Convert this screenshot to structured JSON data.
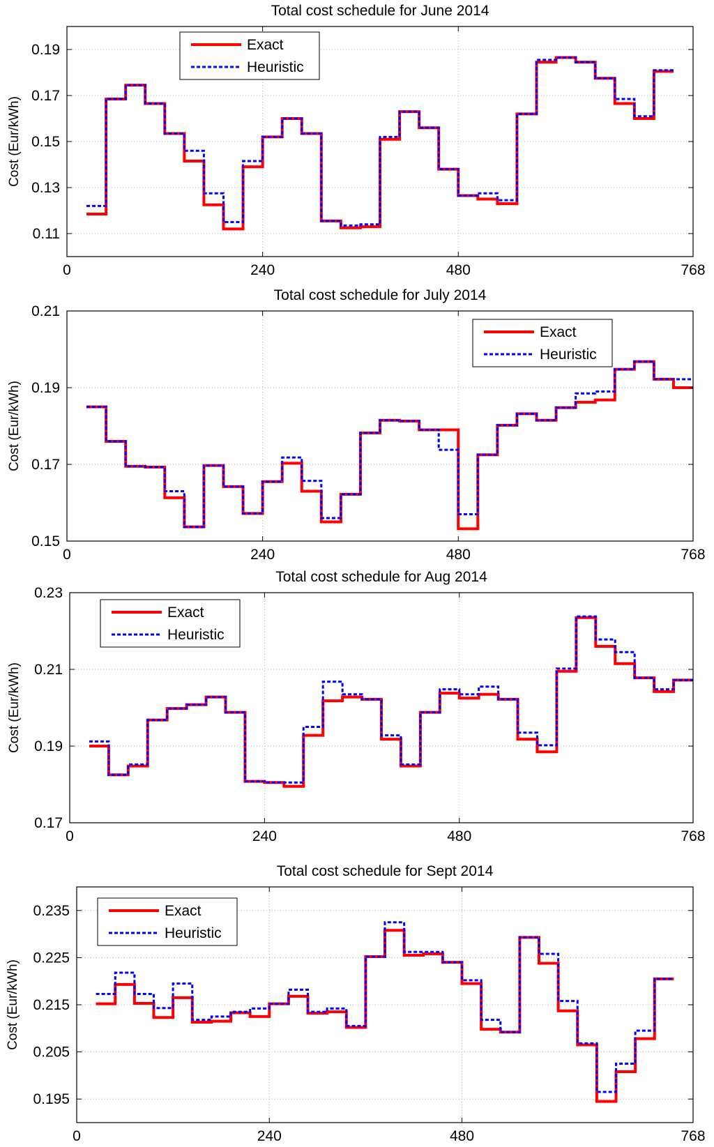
{
  "colors": {
    "exact": "#ff0000",
    "heuristic": "#0000ff",
    "grid": "#b0b0b0",
    "axis": "#000000"
  },
  "chart_data": [
    {
      "type": "line",
      "title": "Total cost schedule for June 2014",
      "xlabel": "",
      "ylabel": "Cost (Eur/kWh)",
      "xlim": [
        0,
        768
      ],
      "ylim": [
        0.1,
        0.2
      ],
      "xticks": [
        0,
        240,
        480,
        768
      ],
      "yticks": [
        0.11,
        0.13,
        0.15,
        0.17,
        0.19
      ],
      "ytick_labels": [
        "0.11",
        "0.13",
        "0.15",
        "0.17",
        "0.19"
      ],
      "legend_position": "top-left",
      "grid": true,
      "series": [
        {
          "name": "Exact",
          "style": "solid",
          "x": [
            24,
            48,
            72,
            96,
            120,
            144,
            168,
            192,
            216,
            240,
            264,
            288,
            312,
            336,
            360,
            384,
            408,
            432,
            456,
            480,
            504,
            528,
            552,
            576,
            600,
            624,
            648,
            672,
            696,
            720,
            744
          ],
          "y": [
            0.1185,
            0.1685,
            0.1745,
            0.1665,
            0.1535,
            0.1415,
            0.1225,
            0.112,
            0.139,
            0.152,
            0.16,
            0.1535,
            0.1155,
            0.1125,
            0.113,
            0.151,
            0.163,
            0.156,
            0.138,
            0.1265,
            0.125,
            0.123,
            0.162,
            0.1845,
            0.1865,
            0.1845,
            0.1775,
            0.1665,
            0.16,
            0.1805,
            0.1805
          ]
        },
        {
          "name": "Heuristic",
          "style": "dashed",
          "x": [
            24,
            48,
            72,
            96,
            120,
            144,
            168,
            192,
            216,
            240,
            264,
            288,
            312,
            336,
            360,
            384,
            408,
            432,
            456,
            480,
            504,
            528,
            552,
            576,
            600,
            624,
            648,
            672,
            696,
            720,
            744
          ],
          "y": [
            0.122,
            0.1685,
            0.1745,
            0.1665,
            0.1535,
            0.146,
            0.1275,
            0.115,
            0.1415,
            0.152,
            0.16,
            0.1535,
            0.1155,
            0.1135,
            0.114,
            0.152,
            0.163,
            0.156,
            0.138,
            0.1265,
            0.1275,
            0.1245,
            0.162,
            0.1855,
            0.1865,
            0.1845,
            0.1775,
            0.1685,
            0.161,
            0.181,
            0.181
          ]
        }
      ]
    },
    {
      "type": "line",
      "title": "Total cost schedule for July 2014",
      "xlabel": "",
      "ylabel": "Cost (Eur/kWh)",
      "xlim": [
        0,
        768
      ],
      "ylim": [
        0.15,
        0.21
      ],
      "xticks": [
        0,
        240,
        480,
        768
      ],
      "yticks": [
        0.15,
        0.17,
        0.19,
        0.21
      ],
      "ytick_labels": [
        "0.15",
        "0.17",
        "0.19",
        "0.21"
      ],
      "legend_position": "top-right",
      "grid": true,
      "series": [
        {
          "name": "Exact",
          "style": "solid",
          "x": [
            24,
            48,
            72,
            96,
            120,
            144,
            168,
            192,
            216,
            240,
            264,
            288,
            312,
            336,
            360,
            384,
            408,
            432,
            456,
            480,
            504,
            528,
            552,
            576,
            600,
            624,
            648,
            672,
            696,
            720,
            744,
            768
          ],
          "y": [
            0.185,
            0.176,
            0.1695,
            0.1693,
            0.1613,
            0.1537,
            0.1697,
            0.1642,
            0.1572,
            0.1655,
            0.1703,
            0.163,
            0.155,
            0.1622,
            0.1782,
            0.1815,
            0.1813,
            0.179,
            0.179,
            0.1532,
            0.1725,
            0.1802,
            0.1832,
            0.1815,
            0.1848,
            0.1862,
            0.1868,
            0.1948,
            0.1968,
            0.1922,
            0.19,
            0.19
          ]
        },
        {
          "name": "Heuristic",
          "style": "dashed",
          "x": [
            24,
            48,
            72,
            96,
            120,
            144,
            168,
            192,
            216,
            240,
            264,
            288,
            312,
            336,
            360,
            384,
            408,
            432,
            456,
            480,
            504,
            528,
            552,
            576,
            600,
            624,
            648,
            672,
            696,
            720,
            744,
            768
          ],
          "y": [
            0.185,
            0.176,
            0.1695,
            0.1693,
            0.163,
            0.1537,
            0.1697,
            0.1642,
            0.1572,
            0.1655,
            0.1718,
            0.1657,
            0.156,
            0.1622,
            0.1782,
            0.1815,
            0.1813,
            0.179,
            0.1738,
            0.157,
            0.1725,
            0.1802,
            0.1832,
            0.1815,
            0.1848,
            0.1885,
            0.189,
            0.1948,
            0.1968,
            0.1922,
            0.1922,
            0.1922
          ]
        }
      ]
    },
    {
      "type": "line",
      "title": "Total cost schedule for Aug 2014",
      "xlabel": "",
      "ylabel": "Cost (Eur/kWh)",
      "xlim": [
        0,
        768
      ],
      "ylim": [
        0.17,
        0.23
      ],
      "xticks": [
        0,
        240,
        480,
        768
      ],
      "yticks": [
        0.17,
        0.19,
        0.21,
        0.23
      ],
      "ytick_labels": [
        "0.17",
        "0.19",
        "0.21",
        "0.23"
      ],
      "legend_position": "top-left",
      "grid": true,
      "series": [
        {
          "name": "Exact",
          "style": "solid",
          "x": [
            24,
            48,
            72,
            96,
            120,
            144,
            168,
            192,
            216,
            240,
            264,
            288,
            312,
            336,
            360,
            384,
            408,
            432,
            456,
            480,
            504,
            528,
            552,
            576,
            600,
            624,
            648,
            672,
            696,
            720,
            744,
            768
          ],
          "y": [
            0.19,
            0.1825,
            0.1848,
            0.1968,
            0.1998,
            0.2008,
            0.2028,
            0.1988,
            0.1808,
            0.1805,
            0.1795,
            0.1928,
            0.2018,
            0.2028,
            0.2022,
            0.1918,
            0.1848,
            0.1988,
            0.2038,
            0.2025,
            0.2035,
            0.2022,
            0.1918,
            0.1885,
            0.2095,
            0.2235,
            0.216,
            0.2115,
            0.2078,
            0.2042,
            0.2072,
            0.2072
          ]
        },
        {
          "name": "Heuristic",
          "style": "dashed",
          "x": [
            24,
            48,
            72,
            96,
            120,
            144,
            168,
            192,
            216,
            240,
            264,
            288,
            312,
            336,
            360,
            384,
            408,
            432,
            456,
            480,
            504,
            528,
            552,
            576,
            600,
            624,
            648,
            672,
            696,
            720,
            744,
            768
          ],
          "y": [
            0.1912,
            0.1825,
            0.1852,
            0.1968,
            0.1998,
            0.2008,
            0.2028,
            0.1988,
            0.1808,
            0.1805,
            0.1805,
            0.195,
            0.2068,
            0.2035,
            0.2022,
            0.1928,
            0.1852,
            0.1988,
            0.2048,
            0.2035,
            0.2055,
            0.2022,
            0.1935,
            0.1902,
            0.2102,
            0.2238,
            0.2178,
            0.2145,
            0.2078,
            0.2048,
            0.2072,
            0.2072
          ]
        }
      ]
    },
    {
      "type": "line",
      "title": "Total cost schedule for Sept 2014",
      "xlabel": "",
      "ylabel": "Cost (Eur/kWh)",
      "xlim": [
        0,
        768
      ],
      "ylim": [
        0.19,
        0.24
      ],
      "xticks": [
        0,
        240,
        480,
        768
      ],
      "yticks": [
        0.195,
        0.205,
        0.215,
        0.225,
        0.235
      ],
      "ytick_labels": [
        "0.195",
        "0.205",
        "0.215",
        "0.225",
        "0.235"
      ],
      "legend_position": "top-left",
      "grid": true,
      "series": [
        {
          "name": "Exact",
          "style": "solid",
          "x": [
            24,
            48,
            72,
            96,
            120,
            144,
            168,
            192,
            216,
            240,
            264,
            288,
            312,
            336,
            360,
            384,
            408,
            432,
            456,
            480,
            504,
            528,
            552,
            576,
            600,
            624,
            648,
            672,
            696,
            720,
            744
          ],
          "y": [
            0.2152,
            0.2193,
            0.2153,
            0.2123,
            0.2165,
            0.2113,
            0.2115,
            0.2133,
            0.2125,
            0.2152,
            0.2168,
            0.2132,
            0.2135,
            0.2102,
            0.2252,
            0.2308,
            0.2255,
            0.2258,
            0.224,
            0.2195,
            0.2098,
            0.2092,
            0.2293,
            0.2238,
            0.2137,
            0.2065,
            0.1945,
            0.2008,
            0.2078,
            0.2205,
            0.2205
          ]
        },
        {
          "name": "Heuristic",
          "style": "dashed",
          "x": [
            24,
            48,
            72,
            96,
            120,
            144,
            168,
            192,
            216,
            240,
            264,
            288,
            312,
            336,
            360,
            384,
            408,
            432,
            456,
            480,
            504,
            528,
            552,
            576,
            600,
            624,
            648,
            672,
            696,
            720,
            744
          ],
          "y": [
            0.2173,
            0.2218,
            0.2173,
            0.2143,
            0.2195,
            0.2118,
            0.2125,
            0.2135,
            0.2142,
            0.2152,
            0.2182,
            0.2135,
            0.2142,
            0.2105,
            0.2252,
            0.2325,
            0.2262,
            0.2262,
            0.224,
            0.2202,
            0.2118,
            0.2092,
            0.2293,
            0.2258,
            0.2158,
            0.2068,
            0.1965,
            0.2025,
            0.2095,
            0.2205,
            0.2205
          ]
        }
      ]
    }
  ]
}
